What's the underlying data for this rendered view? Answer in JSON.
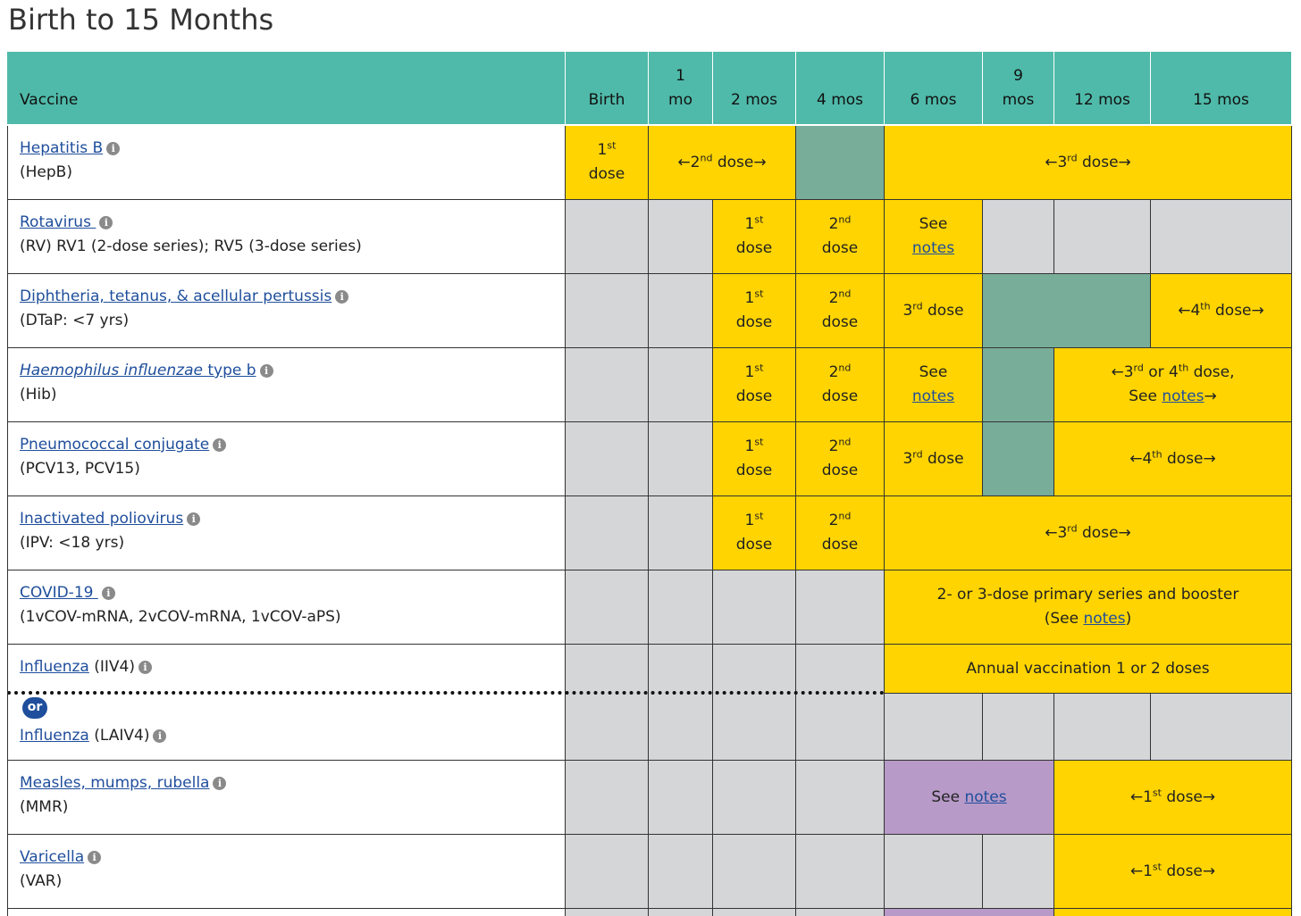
{
  "title": "Birth to 15 Months",
  "colors": {
    "header": "#4fbaa9",
    "recommended": "#ffd400",
    "catchup": "#78ad9a",
    "not_recommended": "#d5d6d8",
    "special": "#b79ac8",
    "link": "#1f4e9c"
  },
  "header": {
    "vaccine": "Vaccine",
    "ages": [
      {
        "top": "",
        "bottom": "Birth"
      },
      {
        "top": "1",
        "bottom": "mo"
      },
      {
        "top": "",
        "bottom": "2 mos"
      },
      {
        "top": "",
        "bottom": "4 mos"
      },
      {
        "top": "",
        "bottom": "6 mos"
      },
      {
        "top": "9",
        "bottom": "mos"
      },
      {
        "top": "",
        "bottom": "12 mos"
      },
      {
        "top": "",
        "bottom": "15 mos"
      }
    ]
  },
  "info_icon": "info-icon",
  "rows": [
    {
      "name": "Hepatitis B",
      "sub": "(HepB)"
    },
    {
      "name": "Rotavirus ",
      "sub": "(RV) RV1 (2-dose series); RV5 (3-dose series)"
    },
    {
      "name": "Diphtheria, tetanus, & acellular pertussis",
      "sub": "(DTaP: <7 yrs)"
    },
    {
      "name_italic": "Haemophilus influenzae",
      "name_rest": " type b",
      "sub": "(Hib)"
    },
    {
      "name": "Pneumococcal conjugate",
      "sub": "(PCV13, PCV15)"
    },
    {
      "name": "Inactivated poliovirus",
      "sub": "(IPV: <18 yrs)"
    },
    {
      "name": "COVID-19 ",
      "sub": "(1vCOV-mRNA, 2vCOV-mRNA, 1vCOV-aPS)"
    },
    {
      "name": "Influenza",
      "suffix": " (IIV4)"
    },
    {
      "or_badge": "or",
      "name": "Influenza",
      "suffix": " (LAIV4)"
    },
    {
      "name": "Measles, mumps, rubella",
      "sub": "(MMR)"
    },
    {
      "name": "Varicella",
      "sub": "(VAR)"
    }
  ],
  "cells": {
    "first_dose": "1st dose",
    "second_dose": "2nd dose",
    "third_dose": "3rd dose",
    "see": "See",
    "notes": "notes",
    "dose_word": "dose",
    "n1": "1",
    "n2": "2",
    "n3": "3",
    "n4": "4",
    "st": "st",
    "nd": "nd",
    "rd": "rd",
    "th": "th",
    "arrow_l": "←",
    "arrow_r": "→",
    "hib_34_a": "←3",
    "hib_34_b": " or 4",
    "hib_34_c": " dose,",
    "see_notes_prefix": "See ",
    "covid_line1": "2- or 3-dose primary series and booster",
    "covid_line2_a": "(See ",
    "covid_line2_b": ")",
    "flu_annual": "Annual vaccination 1 or 2 doses"
  }
}
